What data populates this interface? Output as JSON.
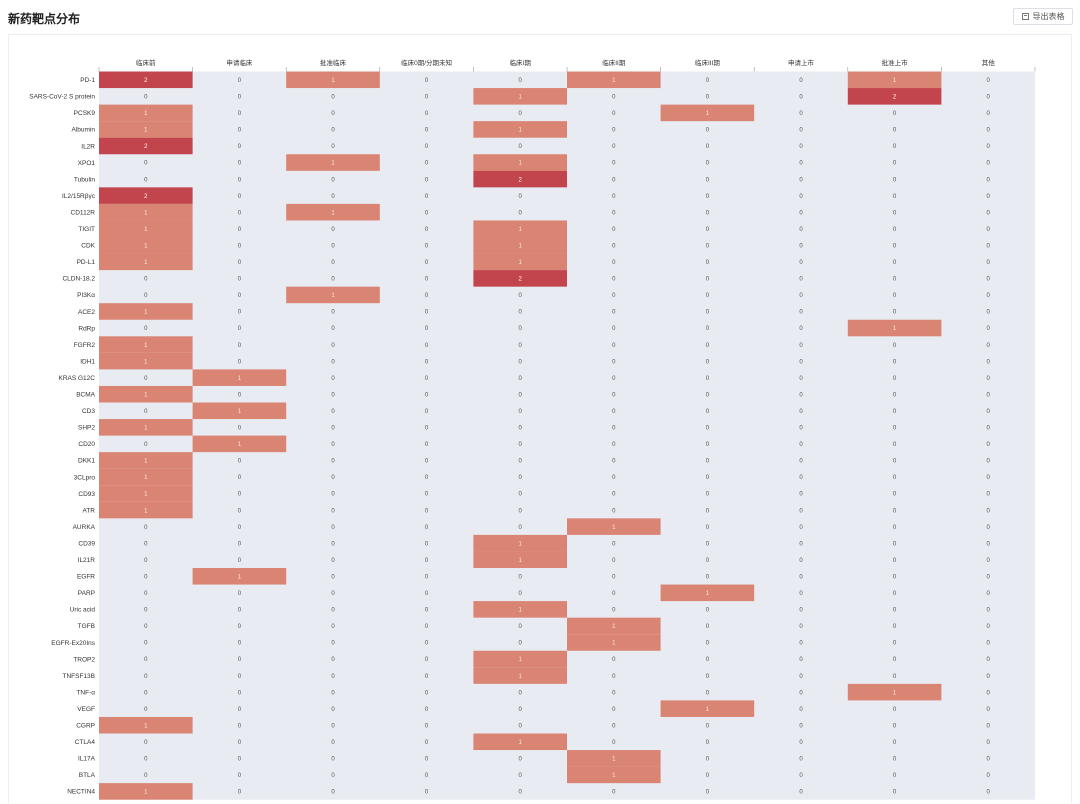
{
  "header": {
    "title": "新药靶点分布",
    "export_label": "导出表格",
    "export_icon": "export-icon"
  },
  "colors": {
    "band": "#e8ebf2",
    "cell_1": "#da8474",
    "cell_2": "#c2444c",
    "text_on_1": "#fce8e2",
    "text_on_2": "#ffffff",
    "text_default": "#555555"
  },
  "chart_data": {
    "type": "heatmap",
    "columns": [
      "临床前",
      "申请临床",
      "批准临床",
      "临床0期/分期未知",
      "临床I期",
      "临床II期",
      "临床III期",
      "申请上市",
      "批准上市",
      "其他"
    ],
    "rows": [
      {
        "name": "PD-1",
        "values": [
          2,
          0,
          1,
          0,
          0,
          1,
          0,
          0,
          1,
          0
        ]
      },
      {
        "name": "SARS-CoV-2 S protein",
        "values": [
          0,
          0,
          0,
          0,
          1,
          0,
          0,
          0,
          2,
          0
        ]
      },
      {
        "name": "PCSK9",
        "values": [
          1,
          0,
          0,
          0,
          0,
          0,
          1,
          0,
          0,
          0
        ]
      },
      {
        "name": "Albumin",
        "values": [
          1,
          0,
          0,
          0,
          1,
          0,
          0,
          0,
          0,
          0
        ]
      },
      {
        "name": "IL2R",
        "values": [
          2,
          0,
          0,
          0,
          0,
          0,
          0,
          0,
          0,
          0
        ]
      },
      {
        "name": "XPO1",
        "values": [
          0,
          0,
          1,
          0,
          1,
          0,
          0,
          0,
          0,
          0
        ]
      },
      {
        "name": "Tubulin",
        "values": [
          0,
          0,
          0,
          0,
          2,
          0,
          0,
          0,
          0,
          0
        ]
      },
      {
        "name": "IL2/15Rβγc",
        "values": [
          2,
          0,
          0,
          0,
          0,
          0,
          0,
          0,
          0,
          0
        ]
      },
      {
        "name": "CD112R",
        "values": [
          1,
          0,
          1,
          0,
          0,
          0,
          0,
          0,
          0,
          0
        ]
      },
      {
        "name": "TIGIT",
        "values": [
          1,
          0,
          0,
          0,
          1,
          0,
          0,
          0,
          0,
          0
        ]
      },
      {
        "name": "CDK",
        "values": [
          1,
          0,
          0,
          0,
          1,
          0,
          0,
          0,
          0,
          0
        ]
      },
      {
        "name": "PD-L1",
        "values": [
          1,
          0,
          0,
          0,
          1,
          0,
          0,
          0,
          0,
          0
        ]
      },
      {
        "name": "CLDN-18.2",
        "values": [
          0,
          0,
          0,
          0,
          2,
          0,
          0,
          0,
          0,
          0
        ]
      },
      {
        "name": "PI3Kα",
        "values": [
          0,
          0,
          1,
          0,
          0,
          0,
          0,
          0,
          0,
          0
        ]
      },
      {
        "name": "ACE2",
        "values": [
          1,
          0,
          0,
          0,
          0,
          0,
          0,
          0,
          0,
          0
        ]
      },
      {
        "name": "RdRp",
        "values": [
          0,
          0,
          0,
          0,
          0,
          0,
          0,
          0,
          1,
          0
        ]
      },
      {
        "name": "FGFR2",
        "values": [
          1,
          0,
          0,
          0,
          0,
          0,
          0,
          0,
          0,
          0
        ]
      },
      {
        "name": "IDH1",
        "values": [
          1,
          0,
          0,
          0,
          0,
          0,
          0,
          0,
          0,
          0
        ]
      },
      {
        "name": "KRAS G12C",
        "values": [
          0,
          1,
          0,
          0,
          0,
          0,
          0,
          0,
          0,
          0
        ]
      },
      {
        "name": "BCMA",
        "values": [
          1,
          0,
          0,
          0,
          0,
          0,
          0,
          0,
          0,
          0
        ]
      },
      {
        "name": "CD3",
        "values": [
          0,
          1,
          0,
          0,
          0,
          0,
          0,
          0,
          0,
          0
        ]
      },
      {
        "name": "SHP2",
        "values": [
          1,
          0,
          0,
          0,
          0,
          0,
          0,
          0,
          0,
          0
        ]
      },
      {
        "name": "CD20",
        "values": [
          0,
          1,
          0,
          0,
          0,
          0,
          0,
          0,
          0,
          0
        ]
      },
      {
        "name": "DKK1",
        "values": [
          1,
          0,
          0,
          0,
          0,
          0,
          0,
          0,
          0,
          0
        ]
      },
      {
        "name": "3CLpro",
        "values": [
          1,
          0,
          0,
          0,
          0,
          0,
          0,
          0,
          0,
          0
        ]
      },
      {
        "name": "CD93",
        "values": [
          1,
          0,
          0,
          0,
          0,
          0,
          0,
          0,
          0,
          0
        ]
      },
      {
        "name": "ATR",
        "values": [
          1,
          0,
          0,
          0,
          0,
          0,
          0,
          0,
          0,
          0
        ]
      },
      {
        "name": "AURKA",
        "values": [
          0,
          0,
          0,
          0,
          0,
          1,
          0,
          0,
          0,
          0
        ]
      },
      {
        "name": "CD39",
        "values": [
          0,
          0,
          0,
          0,
          1,
          0,
          0,
          0,
          0,
          0
        ]
      },
      {
        "name": "IL21R",
        "values": [
          0,
          0,
          0,
          0,
          1,
          0,
          0,
          0,
          0,
          0
        ]
      },
      {
        "name": "EGFR",
        "values": [
          0,
          1,
          0,
          0,
          0,
          0,
          0,
          0,
          0,
          0
        ]
      },
      {
        "name": "PARP",
        "values": [
          0,
          0,
          0,
          0,
          0,
          0,
          1,
          0,
          0,
          0
        ]
      },
      {
        "name": "Uric acid",
        "values": [
          0,
          0,
          0,
          0,
          1,
          0,
          0,
          0,
          0,
          0
        ]
      },
      {
        "name": "TGFB",
        "values": [
          0,
          0,
          0,
          0,
          0,
          1,
          0,
          0,
          0,
          0
        ]
      },
      {
        "name": "EGFR-Ex20Ins",
        "values": [
          0,
          0,
          0,
          0,
          0,
          1,
          0,
          0,
          0,
          0
        ]
      },
      {
        "name": "TROP2",
        "values": [
          0,
          0,
          0,
          0,
          1,
          0,
          0,
          0,
          0,
          0
        ]
      },
      {
        "name": "TNFSF13B",
        "values": [
          0,
          0,
          0,
          0,
          1,
          0,
          0,
          0,
          0,
          0
        ]
      },
      {
        "name": "TNF-α",
        "values": [
          0,
          0,
          0,
          0,
          0,
          0,
          0,
          0,
          1,
          0
        ]
      },
      {
        "name": "VEGF",
        "values": [
          0,
          0,
          0,
          0,
          0,
          0,
          1,
          0,
          0,
          0
        ]
      },
      {
        "name": "CGRP",
        "values": [
          1,
          0,
          0,
          0,
          0,
          0,
          0,
          0,
          0,
          0
        ]
      },
      {
        "name": "CTLA4",
        "values": [
          0,
          0,
          0,
          0,
          1,
          0,
          0,
          0,
          0,
          0
        ]
      },
      {
        "name": "IL17A",
        "values": [
          0,
          0,
          0,
          0,
          0,
          1,
          0,
          0,
          0,
          0
        ]
      },
      {
        "name": "BTLA",
        "values": [
          0,
          0,
          0,
          0,
          0,
          1,
          0,
          0,
          0,
          0
        ]
      },
      {
        "name": "NECTIN4",
        "values": [
          1,
          0,
          0,
          0,
          0,
          0,
          0,
          0,
          0,
          0
        ]
      }
    ]
  }
}
